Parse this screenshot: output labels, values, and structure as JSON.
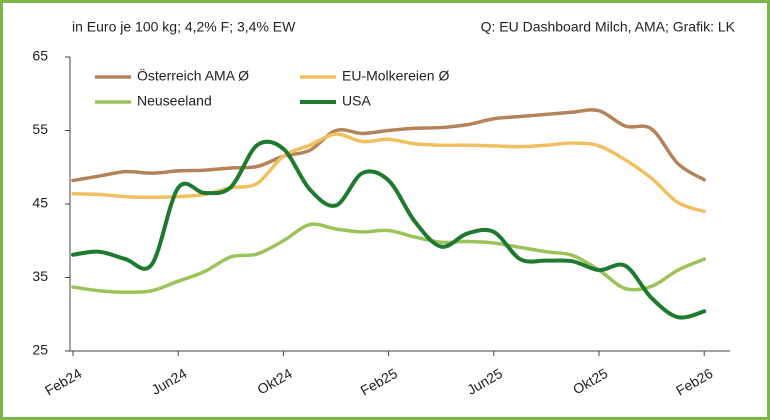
{
  "chart_data": {
    "type": "line",
    "subtitle": "in Euro je 100 kg; 4,2% F; 3,4% EW",
    "source": "Q: EU Dashboard Milch, AMA; Grafik: LK",
    "categories": [
      "Feb24",
      null,
      null,
      null,
      "Jun24",
      null,
      null,
      null,
      "Okt24",
      null,
      null,
      null,
      "Feb25",
      null,
      null,
      null,
      "Jun25",
      null,
      null,
      null,
      "Okt25",
      null,
      null,
      null,
      "Feb26"
    ],
    "series": [
      {
        "name": "Österreich AMA Ø",
        "color": "#b5835a",
        "values": [
          48.2,
          48.8,
          49.4,
          49.2,
          49.5,
          49.6,
          49.9,
          50.1,
          51.5,
          52.3,
          55.0,
          54.6,
          55.0,
          55.3,
          55.4,
          55.8,
          56.6,
          56.9,
          57.2,
          57.5,
          57.7,
          55.6,
          55.2,
          50.5,
          48.3
        ]
      },
      {
        "name": "EU-Molkereien Ø",
        "color": "#f0c060",
        "values": [
          46.4,
          46.3,
          46.0,
          45.9,
          46.0,
          46.3,
          47.2,
          47.8,
          51.5,
          53.0,
          54.5,
          53.5,
          53.8,
          53.2,
          53.0,
          53.0,
          52.9,
          52.8,
          53.0,
          53.3,
          52.9,
          51.0,
          48.5,
          45.2,
          44.0
        ]
      },
      {
        "name": "Neuseeland",
        "color": "#9cc35a",
        "values": [
          33.7,
          33.2,
          33.0,
          33.2,
          34.5,
          35.8,
          37.8,
          38.2,
          40.0,
          42.2,
          41.6,
          41.2,
          41.4,
          40.5,
          39.8,
          39.9,
          39.7,
          39.1,
          38.5,
          38.0,
          36.0,
          33.5,
          33.8,
          36.0,
          37.5
        ]
      },
      {
        "name": "USA",
        "color": "#1e7a2e",
        "values": [
          38.1,
          38.5,
          37.5,
          36.8,
          47.2,
          46.5,
          47.3,
          53.0,
          52.5,
          47.0,
          44.8,
          49.2,
          48.2,
          42.6,
          39.2,
          41.0,
          41.2,
          37.5,
          37.3,
          37.2,
          36.0,
          36.6,
          32.2,
          29.6,
          30.4
        ]
      }
    ],
    "ylim": [
      25,
      65
    ],
    "yticks": [
      25,
      35,
      45,
      55,
      65
    ],
    "grid": false,
    "legend": "top-left"
  }
}
